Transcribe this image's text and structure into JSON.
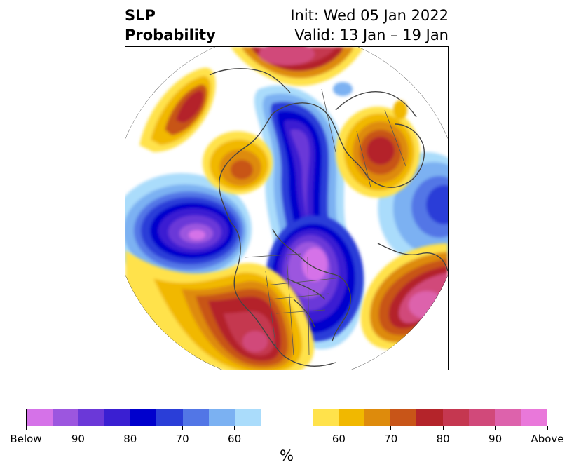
{
  "title": {
    "left_line1": "SLP",
    "left_line2": "Probability",
    "right_line1": "Init: Wed 05 Jan 2022",
    "right_line2": "Valid: 13 Jan – 19 Jan"
  },
  "map": {
    "projection": "polar-stereographic",
    "region": "Northern Hemisphere / North Pacific and North America",
    "features": [
      {
        "name": "below-normal-pacific",
        "category": "below",
        "level": "90+"
      },
      {
        "name": "below-normal-western-canada",
        "category": "below",
        "level": "90+"
      },
      {
        "name": "below-normal-eastern-us",
        "category": "below",
        "level": "90+"
      },
      {
        "name": "above-normal-southwest-us-mexico",
        "category": "above",
        "level": "90+"
      },
      {
        "name": "above-normal-north-atlantic",
        "category": "above",
        "level": "90+"
      },
      {
        "name": "above-normal-arctic-siberia",
        "category": "above",
        "level": "90+"
      },
      {
        "name": "above-normal-greenland",
        "category": "above",
        "level": "80+"
      },
      {
        "name": "above-normal-alaska",
        "category": "above",
        "level": "70"
      },
      {
        "name": "below-normal-europe",
        "category": "below",
        "level": "70"
      }
    ]
  },
  "colorbar": {
    "colors": [
      "#d572e8",
      "#9c56df",
      "#6b38d8",
      "#3a1fd2",
      "#0000cd",
      "#2a3ed8",
      "#5276e6",
      "#7bb1f2",
      "#aadcfb",
      "#ffffff",
      "#ffffff",
      "#ffe24b",
      "#f1b800",
      "#de8b0c",
      "#c85518",
      "#b4242a",
      "#c53750",
      "#d1497a",
      "#dd62ac",
      "#e978da"
    ],
    "ticks": [
      "Below",
      "90",
      "80",
      "70",
      "60",
      "60",
      "70",
      "80",
      "90",
      "Above"
    ],
    "units": "%"
  }
}
